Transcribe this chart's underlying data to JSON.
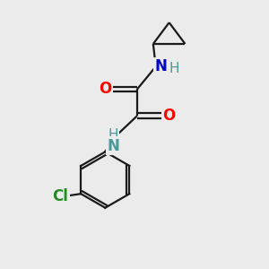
{
  "background_color": "#ebebeb",
  "bond_color": "#1a1a1a",
  "O_color": "#ff0000",
  "N_color": "#0000cc",
  "N2_color": "#4a9a9a",
  "Cl_color": "#228b22",
  "H_color": "#4a9a9a",
  "figsize": [
    3.0,
    3.0
  ],
  "dpi": 100,
  "xlim": [
    0,
    10
  ],
  "ylim": [
    0,
    10
  ]
}
